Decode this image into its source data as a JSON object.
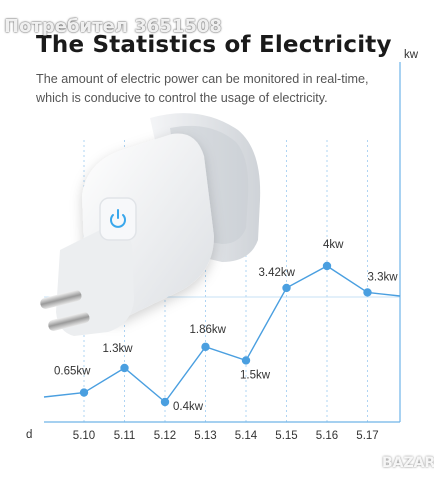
{
  "watermark": "Потребител 3651508",
  "title": "The Statistics of Electricity",
  "description": [
    "The amount of electric power can be monitored in real-time,",
    "which is conducive to control the usage of electricity."
  ],
  "footer_watermark": "BAZAR",
  "chart_data": {
    "type": "line",
    "x": [
      "5.10",
      "5.11",
      "5.12",
      "5.13",
      "5.14",
      "5.15",
      "5.16",
      "5.17"
    ],
    "values": [
      0.65,
      1.3,
      0.4,
      1.86,
      1.5,
      3.42,
      4,
      3.3
    ],
    "data_labels": [
      "0.65kw",
      "1.3kw",
      "0.4kw",
      "1.86kw",
      "1.5kw",
      "3.42kw",
      "4kw",
      "3.3kw"
    ],
    "xlabel": "d",
    "ylabel": "kw",
    "ylim": [
      0,
      4.6
    ],
    "line_color": "#4a9fe0",
    "axis_color": "#6fb3e8",
    "grid": "vertical-dashed"
  }
}
